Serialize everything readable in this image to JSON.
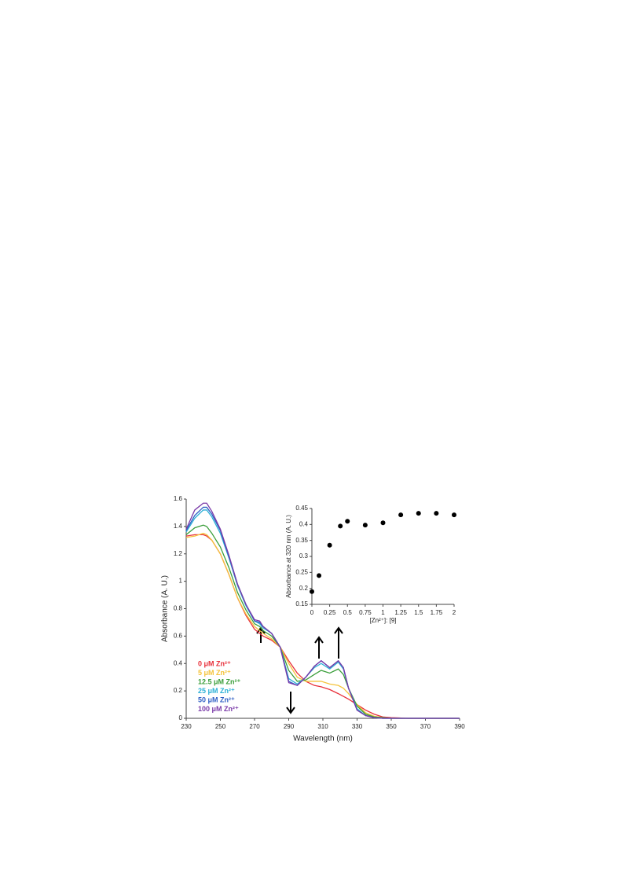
{
  "chart_data": [
    {
      "type": "line",
      "x_label": "Wavelength  (nm)",
      "y_label": "Absorbance  (A. U.)",
      "x": [
        230,
        235,
        240,
        242,
        245,
        250,
        255,
        260,
        265,
        270,
        273,
        275,
        280,
        285,
        290,
        295,
        300,
        305,
        309,
        314,
        319,
        322,
        325,
        330,
        335,
        340,
        345,
        350,
        360,
        370,
        380,
        390
      ],
      "xlim": [
        230,
        390
      ],
      "xticks": [
        230,
        250,
        270,
        290,
        310,
        330,
        350,
        370,
        390
      ],
      "ylim": [
        0,
        1.6
      ],
      "yticks": [
        0,
        0.2,
        0.4,
        0.6,
        0.8,
        1,
        1.2,
        1.4,
        1.6
      ],
      "legend": "lower left",
      "series": [
        {
          "name": "0 μM Zn²⁺",
          "color": "#e8303a",
          "values": [
            1.33,
            1.34,
            1.34,
            1.33,
            1.3,
            1.2,
            1.05,
            0.88,
            0.75,
            0.65,
            0.62,
            0.6,
            0.57,
            0.52,
            0.42,
            0.33,
            0.27,
            0.24,
            0.23,
            0.21,
            0.18,
            0.16,
            0.14,
            0.1,
            0.06,
            0.03,
            0.01,
            0.005,
            0,
            0,
            0,
            0
          ]
        },
        {
          "name": "5 μM Zn²⁺",
          "color": "#f5c33b",
          "values": [
            1.32,
            1.33,
            1.35,
            1.34,
            1.3,
            1.2,
            1.05,
            0.88,
            0.76,
            0.67,
            0.64,
            0.62,
            0.58,
            0.52,
            0.4,
            0.3,
            0.27,
            0.27,
            0.27,
            0.25,
            0.24,
            0.22,
            0.18,
            0.1,
            0.04,
            0.015,
            0.005,
            0,
            0,
            0,
            0,
            0
          ]
        },
        {
          "name": "12.5 μM Zn²⁺",
          "color": "#3a9e3a",
          "values": [
            1.34,
            1.39,
            1.41,
            1.4,
            1.35,
            1.25,
            1.1,
            0.92,
            0.79,
            0.69,
            0.67,
            0.64,
            0.6,
            0.52,
            0.35,
            0.27,
            0.28,
            0.32,
            0.35,
            0.33,
            0.36,
            0.32,
            0.22,
            0.09,
            0.03,
            0.01,
            0.005,
            0,
            0,
            0,
            0,
            0
          ]
        },
        {
          "name": "25 μM Zn²⁺",
          "color": "#2bb0d6",
          "values": [
            1.36,
            1.46,
            1.52,
            1.52,
            1.47,
            1.35,
            1.17,
            0.97,
            0.82,
            0.71,
            0.69,
            0.66,
            0.62,
            0.52,
            0.29,
            0.25,
            0.3,
            0.37,
            0.4,
            0.36,
            0.41,
            0.36,
            0.22,
            0.07,
            0.02,
            0.005,
            0,
            0,
            0,
            0,
            0,
            0
          ]
        },
        {
          "name": "50 μM Zn²⁺",
          "color": "#2f5fc4",
          "values": [
            1.37,
            1.48,
            1.54,
            1.54,
            1.49,
            1.37,
            1.18,
            0.98,
            0.83,
            0.71,
            0.7,
            0.67,
            0.62,
            0.52,
            0.27,
            0.24,
            0.3,
            0.38,
            0.42,
            0.37,
            0.42,
            0.37,
            0.22,
            0.06,
            0.02,
            0.005,
            0,
            0,
            0,
            0,
            0,
            0
          ]
        },
        {
          "name": "100 μM Zn²⁺",
          "color": "#7a3aa8",
          "values": [
            1.38,
            1.52,
            1.57,
            1.57,
            1.51,
            1.38,
            1.19,
            0.98,
            0.83,
            0.72,
            0.71,
            0.67,
            0.62,
            0.52,
            0.26,
            0.24,
            0.3,
            0.38,
            0.42,
            0.37,
            0.42,
            0.37,
            0.22,
            0.06,
            0.02,
            0.005,
            0,
            0,
            0,
            0,
            0,
            0
          ]
        }
      ]
    },
    {
      "type": "scatter",
      "x_label": "[Zn²⁺]: [9]",
      "y_label": "Absorbance at 320 nm (A. U.)",
      "x": [
        0,
        0.1,
        0.25,
        0.4,
        0.5,
        0.75,
        1,
        1.25,
        1.5,
        1.75,
        2
      ],
      "values": [
        0.19,
        0.24,
        0.335,
        0.395,
        0.41,
        0.398,
        0.405,
        0.43,
        0.435,
        0.435,
        0.43
      ],
      "color": "#000000",
      "xlim": [
        0,
        2
      ],
      "xticks": [
        0,
        0.25,
        0.5,
        0.75,
        1,
        1.25,
        1.5,
        1.75,
        2
      ],
      "ylim": [
        0.15,
        0.45
      ],
      "yticks": [
        0.15,
        0.2,
        0.25,
        0.3,
        0.35,
        0.4,
        0.45
      ]
    }
  ]
}
